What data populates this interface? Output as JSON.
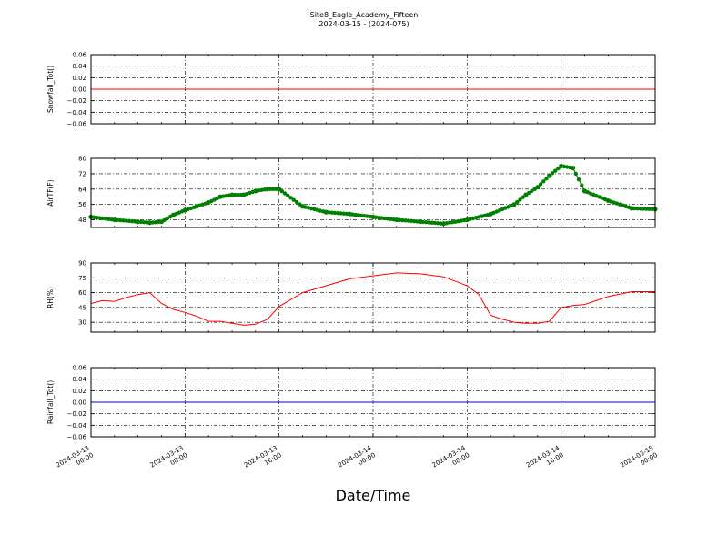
{
  "chart_data": {
    "type": "line",
    "title": "Site8_Eagle_Academy_Fifteen",
    "subtitle": "2024-03-15 - (2024-075)",
    "xlabel": "Date/Time",
    "x_ticks": [
      "2024-03-13 00:00",
      "2024-03-13 08:00",
      "2024-03-13 16:00",
      "2024-03-14 00:00",
      "2024-03-14 08:00",
      "2024-03-14 16:00",
      "2024-03-15 00:00"
    ],
    "xlim": [
      "2024-03-13 00:00",
      "2024-03-15 00:00"
    ],
    "grid": true,
    "colors": {
      "snowfall": "#ff0000",
      "airtf": "#008000",
      "rh": "#ff0000",
      "rainfall": "#0000ff"
    },
    "panels": [
      {
        "ylabel": "Snowfall_Tot()",
        "ylim": [
          -0.06,
          0.06
        ],
        "yticks": [
          "0.06",
          "0.04",
          "0.02",
          "0.00",
          "−0.02",
          "−0.04",
          "−0.06"
        ],
        "series": [
          {
            "style": "line",
            "color": "#ff0000",
            "x": [
              "2024-03-13 00:00",
              "2024-03-15 00:00"
            ],
            "y": [
              0.0,
              0.0
            ]
          }
        ]
      },
      {
        "ylabel": "AirTF(F)",
        "ylim": [
          44,
          80
        ],
        "yticks": [
          "80",
          "72",
          "64",
          "56",
          "48"
        ],
        "series": [
          {
            "style": "line-markers",
            "color": "#008000",
            "x": [
              "2024-03-13 00:00",
              "2024-03-13 02:00",
              "2024-03-13 04:00",
              "2024-03-13 05:00",
              "2024-03-13 06:00",
              "2024-03-13 07:00",
              "2024-03-13 08:00",
              "2024-03-13 09:00",
              "2024-03-13 10:00",
              "2024-03-13 11:00",
              "2024-03-13 12:00",
              "2024-03-13 13:00",
              "2024-03-13 14:00",
              "2024-03-13 15:00",
              "2024-03-13 16:00",
              "2024-03-13 18:00",
              "2024-03-13 20:00",
              "2024-03-13 22:00",
              "2024-03-14 00:00",
              "2024-03-14 02:00",
              "2024-03-14 04:00",
              "2024-03-14 06:00",
              "2024-03-14 08:00",
              "2024-03-14 10:00",
              "2024-03-14 12:00",
              "2024-03-14 13:00",
              "2024-03-14 14:00",
              "2024-03-14 15:00",
              "2024-03-14 16:00",
              "2024-03-14 17:00",
              "2024-03-14 18:00",
              "2024-03-14 20:00",
              "2024-03-14 22:00",
              "2024-03-15 00:00"
            ],
            "y": [
              49.5,
              48,
              47,
              46.5,
              47,
              50.5,
              53,
              55,
              57,
              60,
              61,
              61,
              63,
              64,
              64,
              55,
              52,
              51,
              49.5,
              48,
              47,
              46,
              48,
              51,
              56,
              61,
              65,
              71,
              76,
              75,
              63,
              58,
              54,
              53.5
            ]
          }
        ]
      },
      {
        "ylabel": "RH(%)",
        "ylim": [
          20,
          90
        ],
        "yticks": [
          "90",
          "75",
          "60",
          "45",
          "30"
        ],
        "series": [
          {
            "style": "line",
            "color": "#ff0000",
            "x": [
              "2024-03-13 00:00",
              "2024-03-13 01:00",
              "2024-03-13 02:00",
              "2024-03-13 03:00",
              "2024-03-13 04:00",
              "2024-03-13 05:00",
              "2024-03-13 06:00",
              "2024-03-13 07:00",
              "2024-03-13 08:00",
              "2024-03-13 09:00",
              "2024-03-13 10:00",
              "2024-03-13 11:00",
              "2024-03-13 12:00",
              "2024-03-13 13:00",
              "2024-03-13 14:00",
              "2024-03-13 15:00",
              "2024-03-13 16:00",
              "2024-03-13 18:00",
              "2024-03-13 20:00",
              "2024-03-13 22:00",
              "2024-03-14 00:00",
              "2024-03-14 02:00",
              "2024-03-14 04:00",
              "2024-03-14 06:00",
              "2024-03-14 08:00",
              "2024-03-14 09:00",
              "2024-03-14 10:00",
              "2024-03-14 11:00",
              "2024-03-14 12:00",
              "2024-03-14 13:00",
              "2024-03-14 14:00",
              "2024-03-14 15:00",
              "2024-03-14 16:00",
              "2024-03-14 17:00",
              "2024-03-14 18:00",
              "2024-03-14 20:00",
              "2024-03-14 22:00",
              "2024-03-15 00:00"
            ],
            "y": [
              49,
              52,
              51,
              55,
              58,
              60,
              49,
              43,
              40,
              36,
              31,
              31,
              29,
              27,
              28,
              33,
              46,
              60,
              67,
              74,
              77,
              80,
              79,
              76,
              67,
              58,
              37,
              33,
              30,
              29,
              29,
              31,
              45,
              47,
              48,
              56,
              61,
              61
            ]
          }
        ]
      },
      {
        "ylabel": "Rainfall_Tot()",
        "ylim": [
          -0.06,
          0.06
        ],
        "yticks": [
          "0.06",
          "0.04",
          "0.02",
          "0.00",
          "−0.02",
          "−0.04",
          "−0.06"
        ],
        "series": [
          {
            "style": "line",
            "color": "#0000ff",
            "x": [
              "2024-03-13 00:00",
              "2024-03-15 00:00"
            ],
            "y": [
              0.0,
              0.0
            ]
          }
        ]
      }
    ]
  }
}
